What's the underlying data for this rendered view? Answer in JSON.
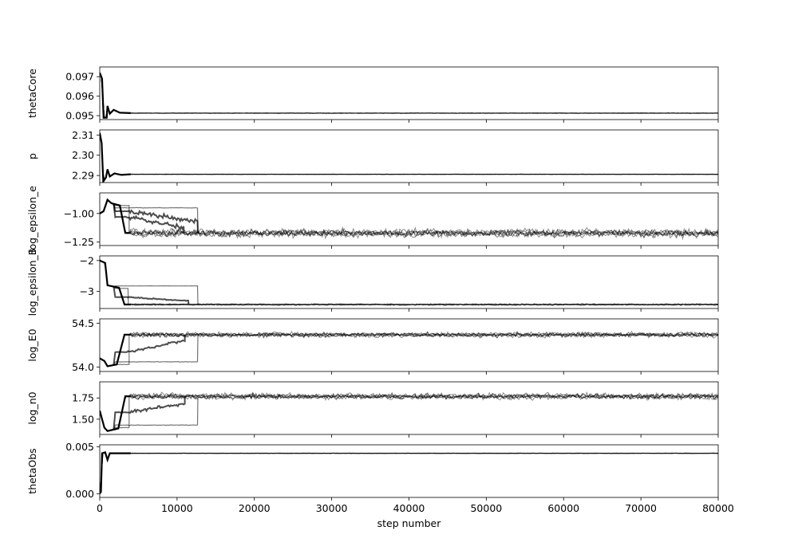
{
  "chart_data": {
    "type": "line",
    "description_kind": "MCMC walker trace plots, shared x axis",
    "xlabel": "step number",
    "xlim": [
      0,
      80000
    ],
    "x_ticks": [
      0,
      10000,
      20000,
      30000,
      40000,
      50000,
      60000,
      70000,
      80000
    ],
    "x_tick_labels": [
      "0",
      "10000",
      "20000",
      "30000",
      "40000",
      "50000",
      "60000",
      "70000",
      "80000"
    ],
    "line_color": "#000000",
    "grid": false,
    "legend": "none",
    "panels": [
      {
        "ylabel": "thetaCore",
        "ylim": [
          0.0948,
          0.0975
        ],
        "y_ticks": [
          0.095,
          0.096,
          0.097
        ],
        "y_tick_labels": [
          "0.095",
          "0.096",
          "0.097"
        ],
        "final_value": 0.09513,
        "noise": 1e-05,
        "start_value": 0.0974,
        "transient_points": [
          [
            0,
            0.0972
          ],
          [
            300,
            0.0969
          ],
          [
            500,
            0.0949
          ],
          [
            900,
            0.0949
          ],
          [
            1000,
            0.0955
          ],
          [
            1300,
            0.0951
          ],
          [
            1800,
            0.0953
          ],
          [
            2600,
            0.09515
          ],
          [
            4000,
            0.09513
          ]
        ],
        "stuck_walkers": []
      },
      {
        "ylabel": "p",
        "ylim": [
          2.2865,
          2.3125
        ],
        "y_ticks": [
          2.29,
          2.3,
          2.31
        ],
        "y_tick_labels": [
          "2.29",
          "2.30",
          "2.31"
        ],
        "final_value": 2.2906,
        "noise": 8e-05,
        "start_value": 2.312,
        "transient_points": [
          [
            0,
            2.311
          ],
          [
            250,
            2.306
          ],
          [
            450,
            2.287
          ],
          [
            800,
            2.289
          ],
          [
            1000,
            2.293
          ],
          [
            1300,
            2.2895
          ],
          [
            1900,
            2.291
          ],
          [
            2800,
            2.2903
          ],
          [
            4000,
            2.2906
          ]
        ],
        "stuck_walkers": []
      },
      {
        "ylabel": "log_epsilon_e",
        "ylim": [
          -1.28,
          -0.82
        ],
        "y_ticks": [
          -1.0,
          -1.25
        ],
        "y_tick_labels": [
          "−1.00",
          "−1.25"
        ],
        "final_value": -1.17,
        "noise": 0.025,
        "start_value": -0.98,
        "transient_points": [
          [
            0,
            -1.0
          ],
          [
            500,
            -0.98
          ],
          [
            1000,
            -0.88
          ],
          [
            1500,
            -0.91
          ],
          [
            2600,
            -0.93
          ],
          [
            3300,
            -1.17
          ],
          [
            4000,
            -1.17
          ]
        ],
        "stuck_walkers": [
          {
            "plateau": -0.93,
            "release": 3800
          },
          {
            "plateau": -0.95,
            "release": 12700
          },
          {
            "plateau": -0.98,
            "release": 12700,
            "drift_to": -1.06,
            "drift_start": 3800,
            "drift_end": 11500
          },
          {
            "plateau": -1.03,
            "release": 10900,
            "drift_to": -1.12,
            "drift_start": 3600,
            "drift_end": 10500
          }
        ]
      },
      {
        "ylabel": "log_epsilon_B",
        "ylim": [
          -3.55,
          -1.85
        ],
        "y_ticks": [
          -2,
          -3
        ],
        "y_tick_labels": [
          "−2",
          "−3"
        ],
        "final_value": -3.42,
        "noise": 0.02,
        "start_value": -2.0,
        "transient_points": [
          [
            0,
            -2.0
          ],
          [
            700,
            -2.08
          ],
          [
            1000,
            -2.8
          ],
          [
            2500,
            -2.88
          ],
          [
            3200,
            -3.42
          ],
          [
            4000,
            -3.42
          ]
        ],
        "stuck_walkers": [
          {
            "plateau": -2.82,
            "release": 12700
          },
          {
            "plateau": -2.9,
            "release": 3700
          },
          {
            "plateau": -3.18,
            "release": 11500,
            "drift_to": -3.3,
            "drift_start": 3500,
            "drift_end": 11000
          }
        ]
      },
      {
        "ylabel": "log_E0",
        "ylim": [
          53.95,
          54.55
        ],
        "y_ticks": [
          54.0,
          54.5
        ],
        "y_tick_labels": [
          "54.0",
          "54.5"
        ],
        "final_value": 54.37,
        "noise": 0.02,
        "start_value": 54.1,
        "transient_points": [
          [
            0,
            54.1
          ],
          [
            600,
            54.07
          ],
          [
            1000,
            54.01
          ],
          [
            2200,
            54.03
          ],
          [
            3200,
            54.37
          ],
          [
            4000,
            54.37
          ]
        ],
        "stuck_walkers": [
          {
            "plateau": 54.06,
            "release": 12700
          },
          {
            "plateau": 54.03,
            "release": 3800
          },
          {
            "plateau": 54.17,
            "release": 11000,
            "drift_to": 54.3,
            "drift_start": 3600,
            "drift_end": 10800
          }
        ]
      },
      {
        "ylabel": "log_n0",
        "ylim": [
          1.32,
          1.94
        ],
        "y_ticks": [
          1.5,
          1.75
        ],
        "y_tick_labels": [
          "1.50",
          "1.75"
        ],
        "final_value": 1.77,
        "noise": 0.025,
        "start_value": 1.6,
        "transient_points": [
          [
            0,
            1.6
          ],
          [
            600,
            1.4
          ],
          [
            1000,
            1.36
          ],
          [
            2400,
            1.39
          ],
          [
            3300,
            1.77
          ],
          [
            4000,
            1.77
          ]
        ],
        "stuck_walkers": [
          {
            "plateau": 1.43,
            "release": 12700
          },
          {
            "plateau": 1.4,
            "release": 3800
          },
          {
            "plateau": 1.58,
            "release": 11000,
            "drift_to": 1.68,
            "drift_start": 3600,
            "drift_end": 10800
          }
        ]
      },
      {
        "ylabel": "thetaObs",
        "ylim": [
          -0.0004,
          0.0052
        ],
        "y_ticks": [
          0.0,
          0.005
        ],
        "y_tick_labels": [
          "0.000",
          "0.005"
        ],
        "final_value": 0.0043,
        "noise": 2e-05,
        "start_value": 0.0,
        "transient_points": [
          [
            0,
            0.0
          ],
          [
            150,
            0.0002
          ],
          [
            300,
            0.0043
          ],
          [
            700,
            0.0044
          ],
          [
            1000,
            0.0036
          ],
          [
            1300,
            0.0043
          ],
          [
            4000,
            0.0043
          ]
        ],
        "stuck_walkers": []
      }
    ]
  }
}
